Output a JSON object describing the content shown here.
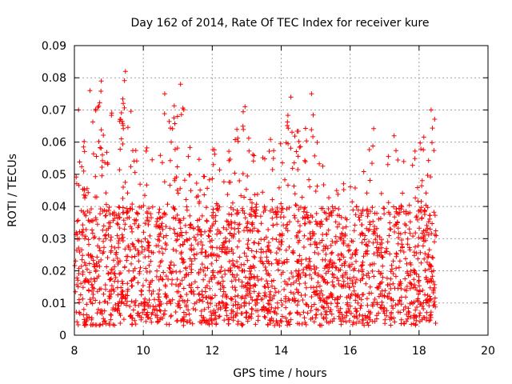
{
  "chart_data": {
    "type": "scatter",
    "title": "Day 162 of 2014, Rate Of TEC Index for receiver kure",
    "xlabel": "GPS time / hours",
    "ylabel": "ROTI / TECUs",
    "xlim": [
      8,
      20
    ],
    "ylim": [
      0,
      0.09
    ],
    "xticks": [
      8,
      10,
      12,
      14,
      16,
      18,
      20
    ],
    "xtick_labels": [
      "8",
      "10",
      "12",
      "14",
      "16",
      "18",
      "20"
    ],
    "yticks": [
      0,
      0.01,
      0.02,
      0.03,
      0.04,
      0.05,
      0.06,
      0.07,
      0.08,
      0.09
    ],
    "ytick_labels": [
      "0",
      "0.01",
      "0.02",
      "0.03",
      "0.04",
      "0.05",
      "0.06",
      "0.07",
      "0.08",
      "0.09"
    ],
    "grid": true,
    "marker": "+",
    "color": "#ff0000",
    "series": [
      {
        "name": "ROTI",
        "x_range": [
          8.0,
          18.5
        ],
        "bulk_range": [
          0.003,
          0.04
        ],
        "envelope": {
          "x": [
            8.0,
            8.2,
            8.4,
            8.6,
            8.8,
            9.0,
            9.2,
            9.5,
            9.8,
            10.0,
            10.3,
            10.6,
            10.8,
            11.1,
            11.4,
            11.7,
            12.0,
            12.3,
            12.6,
            12.9,
            13.2,
            13.5,
            13.8,
            14.0,
            14.3,
            14.5,
            14.8,
            15.0,
            15.3,
            15.6,
            15.9,
            16.2,
            16.5,
            16.7,
            17.0,
            17.3,
            17.6,
            17.9,
            18.1,
            18.3,
            18.5
          ],
          "y": [
            0.06,
            0.07,
            0.055,
            0.076,
            0.079,
            0.068,
            0.072,
            0.082,
            0.058,
            0.063,
            0.055,
            0.075,
            0.07,
            0.078,
            0.062,
            0.058,
            0.06,
            0.055,
            0.065,
            0.071,
            0.058,
            0.06,
            0.068,
            0.062,
            0.074,
            0.07,
            0.066,
            0.075,
            0.05,
            0.045,
            0.048,
            0.046,
            0.058,
            0.065,
            0.052,
            0.063,
            0.055,
            0.058,
            0.062,
            0.07,
            0.067
          ]
        },
        "highlights": [
          {
            "x": 8.12,
            "y": 0.07
          },
          {
            "x": 8.45,
            "y": 0.076
          },
          {
            "x": 8.78,
            "y": 0.079
          },
          {
            "x": 9.48,
            "y": 0.082
          },
          {
            "x": 10.62,
            "y": 0.075
          },
          {
            "x": 11.08,
            "y": 0.078
          },
          {
            "x": 12.95,
            "y": 0.071
          },
          {
            "x": 14.28,
            "y": 0.074
          },
          {
            "x": 14.88,
            "y": 0.075
          },
          {
            "x": 18.35,
            "y": 0.07
          }
        ]
      }
    ]
  }
}
